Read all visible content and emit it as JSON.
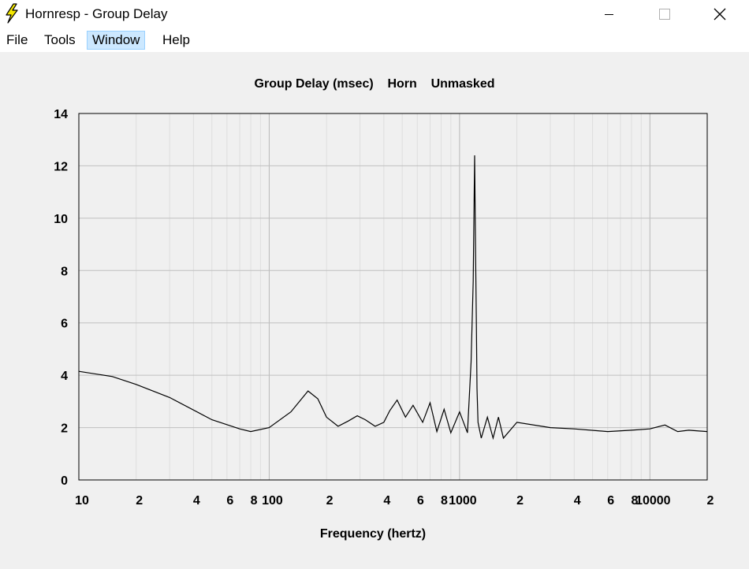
{
  "window": {
    "title": "Hornresp - Group Delay",
    "icon": "lightning-bolt-icon"
  },
  "menu": {
    "items": [
      {
        "label": "File"
      },
      {
        "label": "Tools"
      },
      {
        "label": "Window"
      },
      {
        "label": "Help"
      }
    ],
    "active_index": 2
  },
  "chart_data": {
    "type": "line",
    "title": "Group Delay (msec)    Horn    Unmasked",
    "xlabel": "Frequency (hertz)",
    "ylabel": "",
    "xscale": "log",
    "xlim": [
      10,
      20000
    ],
    "ylim": [
      0,
      14
    ],
    "yticks": [
      0,
      2,
      4,
      6,
      8,
      10,
      12,
      14
    ],
    "xtick_labels": [
      {
        "value": 10,
        "label": "10"
      },
      {
        "value": 20,
        "label": "2"
      },
      {
        "value": 40,
        "label": "4"
      },
      {
        "value": 60,
        "label": "6"
      },
      {
        "value": 80,
        "label": "8"
      },
      {
        "value": 100,
        "label": "100"
      },
      {
        "value": 200,
        "label": "2"
      },
      {
        "value": 400,
        "label": "4"
      },
      {
        "value": 600,
        "label": "6"
      },
      {
        "value": 800,
        "label": "8"
      },
      {
        "value": 1000,
        "label": "1000"
      },
      {
        "value": 2000,
        "label": "2"
      },
      {
        "value": 4000,
        "label": "4"
      },
      {
        "value": 6000,
        "label": "6"
      },
      {
        "value": 8000,
        "label": "8"
      },
      {
        "value": 10000,
        "label": "10000"
      },
      {
        "value": 20000,
        "label": "2"
      }
    ],
    "grid": true,
    "line_color": "#000000",
    "series": [
      {
        "x": [
          10,
          15,
          20,
          30,
          50,
          70,
          80,
          100,
          130,
          160,
          180,
          200,
          230,
          260,
          290,
          320,
          360,
          400,
          430,
          470,
          520,
          570,
          640,
          700,
          760,
          830,
          900,
          1000,
          1100,
          1150,
          1180,
          1200,
          1215,
          1225,
          1235,
          1250,
          1300,
          1400,
          1500,
          1600,
          1700,
          2000,
          3000,
          4000,
          6000,
          8000,
          10000,
          12000,
          14000,
          16000,
          20000
        ],
        "y": [
          4.15,
          3.95,
          3.65,
          3.15,
          2.3,
          1.95,
          1.85,
          2.0,
          2.6,
          3.4,
          3.1,
          2.4,
          2.05,
          2.25,
          2.45,
          2.3,
          2.05,
          2.2,
          2.65,
          3.05,
          2.4,
          2.85,
          2.2,
          2.95,
          1.85,
          2.7,
          1.8,
          2.6,
          1.8,
          4.5,
          7.6,
          12.4,
          8.4,
          6.0,
          3.5,
          2.2,
          1.6,
          2.4,
          1.6,
          2.4,
          1.6,
          2.2,
          2.0,
          1.95,
          1.85,
          1.9,
          1.95,
          2.1,
          1.85,
          1.9,
          1.85
        ]
      }
    ]
  }
}
